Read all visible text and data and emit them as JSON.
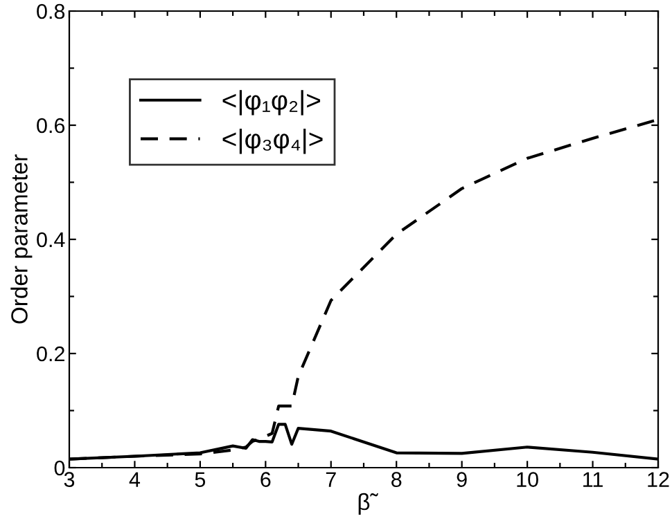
{
  "chart_data": {
    "type": "line",
    "xlabel": "β̃",
    "ylabel": "Order parameter",
    "xlim": [
      3,
      12
    ],
    "ylim": [
      0,
      0.8
    ],
    "xticks": [
      3,
      {
        "value": 3.5,
        "label": null
      },
      4,
      {
        "value": 4.5,
        "label": null
      },
      5,
      {
        "value": 5.5,
        "label": null
      },
      6,
      {
        "value": 6.5,
        "label": null
      },
      7,
      {
        "value": 7.5,
        "label": null
      },
      8,
      {
        "value": 8.5,
        "label": null
      },
      9,
      {
        "value": 9.5,
        "label": null
      },
      10,
      {
        "value": 10.5,
        "label": null
      },
      11,
      {
        "value": 11.5,
        "label": null
      },
      12
    ],
    "yticks": [
      0,
      {
        "value": 0.1,
        "label": null
      },
      0.2,
      {
        "value": 0.3,
        "label": null
      },
      0.4,
      {
        "value": 0.5,
        "label": null
      },
      0.6,
      {
        "value": 0.7,
        "label": null
      },
      0.8
    ],
    "x": [
      3,
      4,
      5,
      5.5,
      5.7,
      5.8,
      5.9,
      6.0,
      6.1,
      6.2,
      6.3,
      6.4,
      6.5,
      7,
      8,
      9,
      10,
      11,
      12
    ],
    "series": [
      {
        "name": "<|φ₁φ₂|>",
        "color": "#000000",
        "line_style": "solid",
        "values": [
          0.015,
          0.02,
          0.026,
          0.038,
          0.034,
          0.049,
          0.046,
          0.046,
          0.045,
          0.076,
          0.076,
          0.041,
          0.069,
          0.064,
          0.026,
          0.025,
          0.036,
          0.027,
          0.015
        ]
      },
      {
        "name": "<|φ₃φ₄|>",
        "color": "#000000",
        "line_style": "dashed",
        "values": [
          0.015,
          0.02,
          0.024,
          0.031,
          0.036,
          0.046,
          0.05,
          0.055,
          0.06,
          0.108,
          0.108,
          0.108,
          0.16,
          0.293,
          0.409,
          0.489,
          0.542,
          0.577,
          0.61
        ]
      }
    ],
    "legend": "top left",
    "grid": false,
    "marker": "none"
  }
}
